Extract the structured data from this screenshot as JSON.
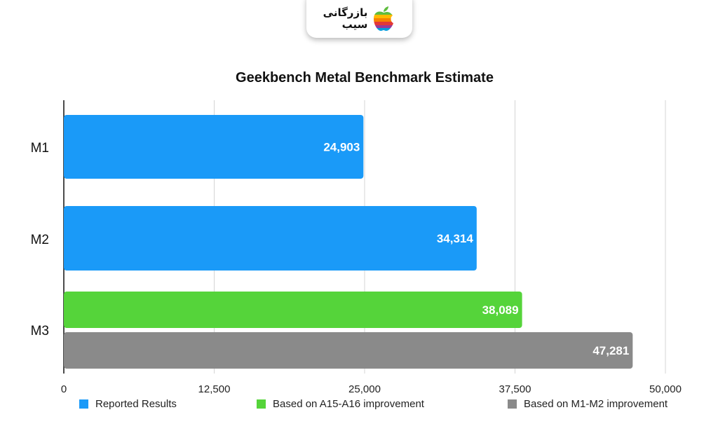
{
  "logo": {
    "line1": "بازرگانی",
    "line2": "سیب",
    "icon": "rainbow-apple-icon"
  },
  "chart_data": {
    "type": "bar",
    "orientation": "horizontal",
    "title": "Geekbench Metal Benchmark Estimate",
    "xlabel": "",
    "ylabel": "",
    "xlim": [
      0,
      50000
    ],
    "x_ticks": [
      0,
      12500,
      25000,
      37500,
      50000
    ],
    "x_tick_labels": [
      "0",
      "12,500",
      "25,000",
      "37,500",
      "50,000"
    ],
    "grid": "vertical",
    "legend_position": "bottom",
    "categories": [
      "M1",
      "M2",
      "M3"
    ],
    "series": [
      {
        "name": "Reported Results",
        "color": "#1a9af8",
        "values": [
          24903,
          34314,
          null
        ],
        "labels": [
          "24,903",
          "34,314",
          null
        ]
      },
      {
        "name": "Based on A15-A16 improvement",
        "color": "#55d43a",
        "values": [
          null,
          null,
          38089
        ],
        "labels": [
          null,
          null,
          "38,089"
        ]
      },
      {
        "name": "Based on M1-M2 improvement",
        "color": "#8a8a8a",
        "values": [
          null,
          null,
          47281
        ],
        "labels": [
          null,
          null,
          "47,281"
        ]
      }
    ]
  }
}
